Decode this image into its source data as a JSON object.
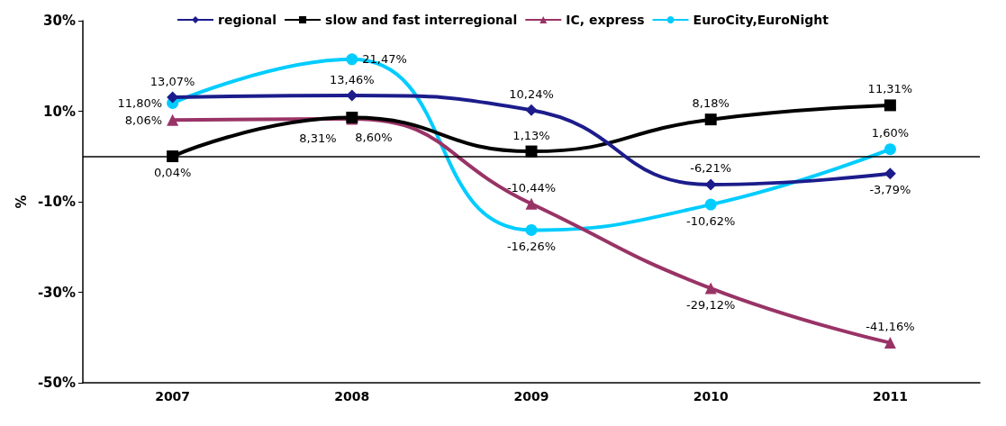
{
  "chart_data": {
    "type": "line",
    "ylabel": "%",
    "categories": [
      "2007",
      "2008",
      "2009",
      "2010",
      "2011"
    ],
    "series": [
      {
        "name": "regional",
        "color": "#1c1c8c",
        "marker": "diamond",
        "values": [
          13.07,
          13.46,
          10.24,
          -6.21,
          -3.79
        ],
        "value_labels": [
          "13,07%",
          "13,46%",
          "10,24%",
          "-6,21%",
          "-3,79%"
        ]
      },
      {
        "name": "slow and fast interregional",
        "color": "#000000",
        "marker": "square",
        "values": [
          0.04,
          8.6,
          1.13,
          8.18,
          11.31
        ],
        "value_labels": [
          "0,04%",
          "8,60%",
          "1,13%",
          "8,18%",
          "11,31%"
        ]
      },
      {
        "name": "IC, express",
        "color": "#993366",
        "marker": "triangle",
        "values": [
          8.06,
          8.31,
          -10.44,
          -29.12,
          -41.16
        ],
        "value_labels": [
          "8,06%",
          "8,31%",
          "-10,44%",
          "-29,12%",
          "-41,16%"
        ]
      },
      {
        "name": "EuroCity,EuroNight",
        "color": "#00ccff",
        "marker": "circle",
        "values": [
          11.8,
          21.47,
          -16.26,
          -10.62,
          1.6
        ],
        "value_labels": [
          "11,80%",
          "21,47%",
          "-16,26%",
          "-10,62%",
          "1,60%"
        ]
      }
    ],
    "ylim": [
      -50,
      30
    ],
    "yticks": [
      {
        "value": -50,
        "label": "-50%"
      },
      {
        "value": -30,
        "label": "-30%"
      },
      {
        "value": -10,
        "label": "-10%"
      },
      {
        "value": 10,
        "label": "10%"
      },
      {
        "value": 30,
        "label": "30%"
      }
    ],
    "ref_lines": [
      {
        "axis": "y",
        "value": 0,
        "color": "#000000"
      }
    ],
    "legend": "top",
    "grid": false
  }
}
